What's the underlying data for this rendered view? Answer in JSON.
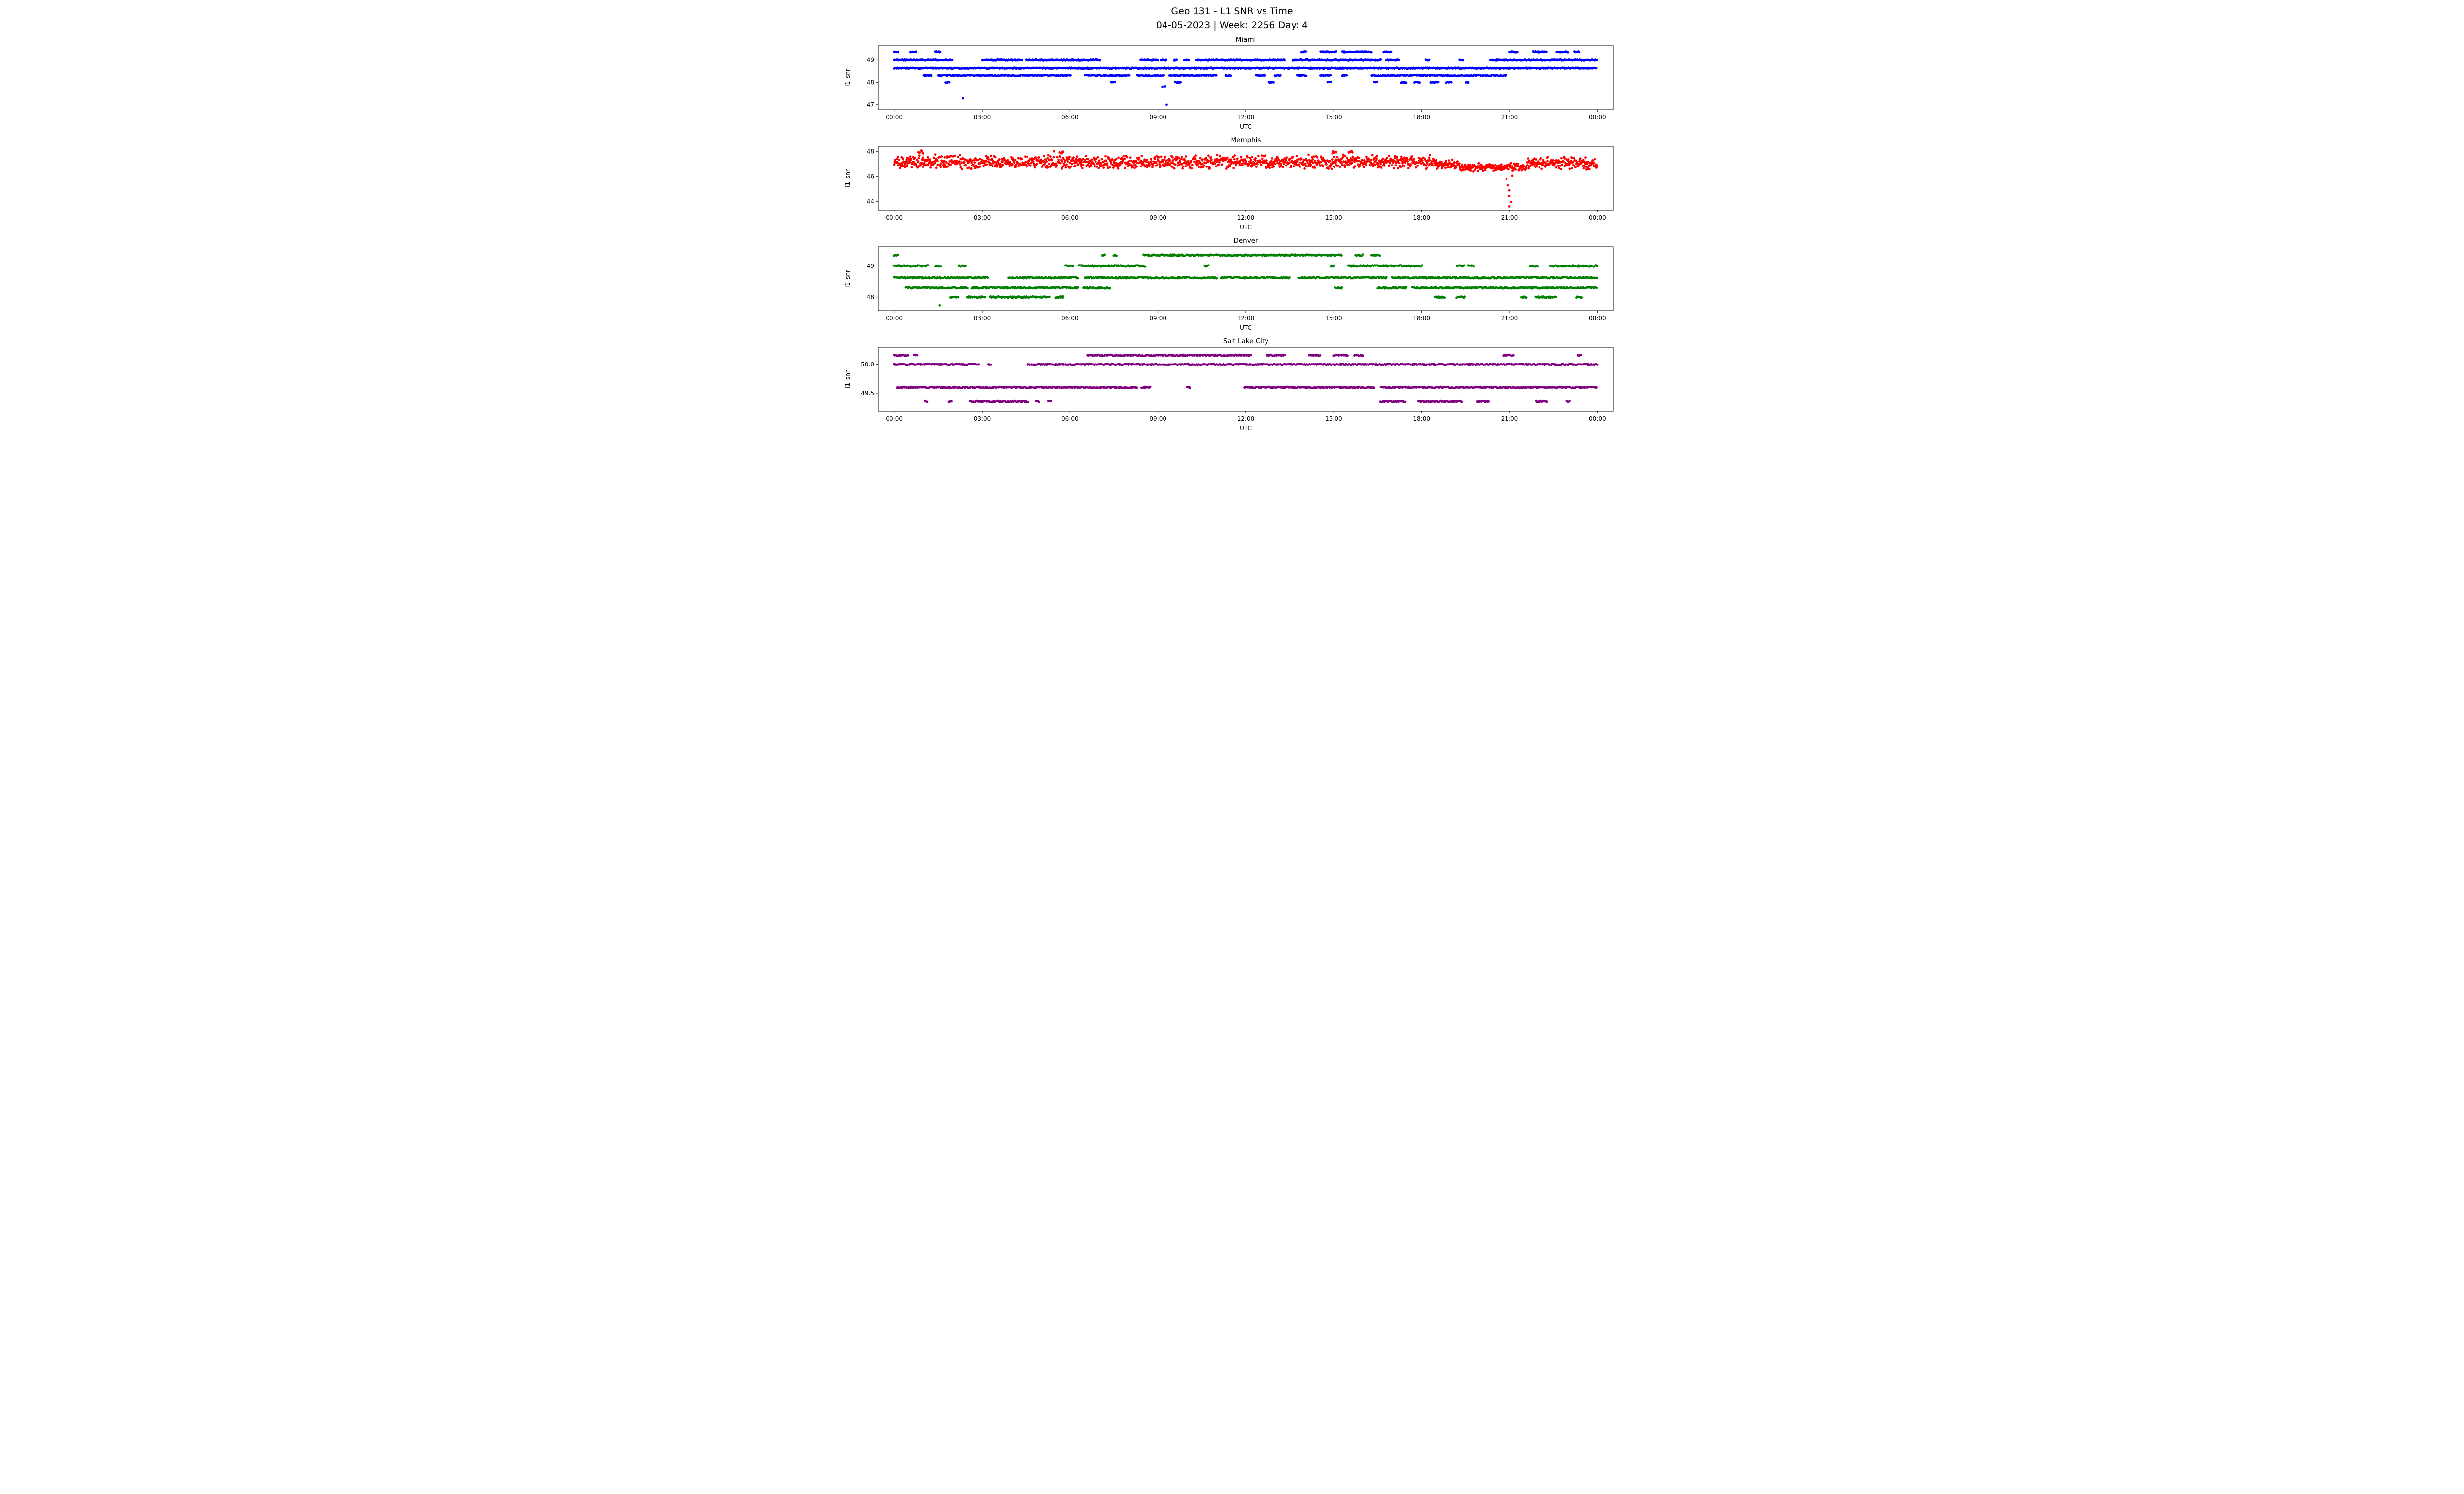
{
  "chart_data": {
    "type": "scatter",
    "suptitle": [
      "Geo 131 - L1 SNR vs Time",
      "04-05-2023 | Week: 2256 Day: 4"
    ],
    "xlabel": "UTC",
    "ylabel": "l1_snr",
    "xlim": [
      -0.55,
      24.55
    ],
    "x_ticks": [
      0,
      3,
      6,
      9,
      12,
      15,
      18,
      21,
      24
    ],
    "x_tick_labels": [
      "00:00",
      "03:00",
      "06:00",
      "09:00",
      "12:00",
      "15:00",
      "18:00",
      "21:00",
      "00:00"
    ],
    "grid": false,
    "legend": "none",
    "subplots": [
      {
        "title": "Miami",
        "color": "#0000ff",
        "ylim": [
          46.78,
          49.62
        ],
        "yticks": [
          47,
          48,
          49
        ],
        "ytick_labels": [
          "47",
          "48",
          "49"
        ],
        "bands": [
          {
            "y": 49.35,
            "segments": [
              [
                0.0,
                0.15
              ],
              [
                0.55,
                0.75
              ],
              [
                1.4,
                1.6
              ],
              [
                13.9,
                14.05
              ],
              [
                14.55,
                15.1
              ],
              [
                15.3,
                16.3
              ],
              [
                16.7,
                17.0
              ],
              [
                21.0,
                21.3
              ],
              [
                21.8,
                22.3
              ],
              [
                22.6,
                23.0
              ],
              [
                23.2,
                23.4
              ]
            ]
          },
          {
            "y": 49.0,
            "segments": [
              [
                0.0,
                2.0
              ],
              [
                3.0,
                4.35
              ],
              [
                4.5,
                7.05
              ],
              [
                8.4,
                9.0
              ],
              [
                9.1,
                9.3
              ],
              [
                9.55,
                9.65
              ],
              [
                9.9,
                10.05
              ],
              [
                10.3,
                13.35
              ],
              [
                13.6,
                16.6
              ],
              [
                16.8,
                17.25
              ],
              [
                18.15,
                18.3
              ],
              [
                19.3,
                19.45
              ],
              [
                20.35,
                24.0
              ]
            ]
          },
          {
            "y": 48.62,
            "segments": [
              [
                0.0,
                24.0
              ]
            ]
          },
          {
            "y": 48.3,
            "segments": [
              [
                1.0,
                1.3
              ],
              [
                1.5,
                6.05
              ],
              [
                6.5,
                8.05
              ],
              [
                8.3,
                9.2
              ],
              [
                9.4,
                11.0
              ],
              [
                11.3,
                11.5
              ],
              [
                12.35,
                12.65
              ],
              [
                13.0,
                13.2
              ],
              [
                13.75,
                14.1
              ],
              [
                14.55,
                14.9
              ],
              [
                15.3,
                15.45
              ],
              [
                16.3,
                20.9
              ]
            ]
          },
          {
            "y": 48.0,
            "segments": [
              [
                1.75,
                1.9
              ],
              [
                7.4,
                7.55
              ],
              [
                9.6,
                9.8
              ],
              [
                12.8,
                12.95
              ],
              [
                14.8,
                14.9
              ],
              [
                16.4,
                16.5
              ],
              [
                17.3,
                17.5
              ],
              [
                17.75,
                17.95
              ],
              [
                18.3,
                18.6
              ],
              [
                18.85,
                19.05
              ],
              [
                19.5,
                19.6
              ]
            ]
          }
        ],
        "points": [
          [
            2.35,
            47.3
          ],
          [
            9.15,
            47.8
          ],
          [
            9.25,
            47.82
          ],
          [
            9.3,
            47.0
          ]
        ]
      },
      {
        "title": "Memphis",
        "color": "#ff0000",
        "ylim": [
          43.3,
          48.4
        ],
        "yticks": [
          44,
          46,
          48
        ],
        "ytick_labels": [
          "44",
          "46",
          "48"
        ],
        "noise_bands": [
          {
            "y_min": 46.55,
            "y_max": 47.75,
            "segments": [
              [
                0.0,
                18.5
              ]
            ]
          },
          {
            "y_min": 46.5,
            "y_max": 47.4,
            "segments": [
              [
                18.5,
                19.3
              ]
            ]
          },
          {
            "y_min": 46.35,
            "y_max": 47.15,
            "segments": [
              [
                19.3,
                21.6
              ]
            ]
          },
          {
            "y_min": 46.5,
            "y_max": 47.6,
            "segments": [
              [
                21.6,
                24.0
              ]
            ]
          },
          {
            "y_min": 47.8,
            "y_max": 48.1,
            "step": 0.03,
            "segments": [
              [
                0.82,
                1.0
              ],
              [
                5.65,
                5.8
              ],
              [
                14.95,
                15.1
              ],
              [
                15.5,
                15.65
              ]
            ]
          }
        ],
        "points": [
          [
            20.9,
            45.8
          ],
          [
            20.95,
            45.3
          ],
          [
            21.0,
            44.9
          ],
          [
            21.0,
            44.45
          ],
          [
            21.05,
            43.95
          ],
          [
            21.0,
            43.6
          ],
          [
            21.1,
            46.05
          ],
          [
            5.45,
            48.0
          ]
        ]
      },
      {
        "title": "Denver",
        "color": "#008000",
        "ylim": [
          47.55,
          49.62
        ],
        "yticks": [
          48,
          49
        ],
        "ytick_labels": [
          "48",
          "49"
        ],
        "bands": [
          {
            "y": 49.35,
            "segments": [
              [
                0.0,
                0.12
              ],
              [
                7.1,
                7.2
              ],
              [
                7.5,
                7.62
              ],
              [
                8.5,
                15.3
              ],
              [
                15.75,
                16.0
              ],
              [
                16.3,
                16.6
              ]
            ]
          },
          {
            "y": 49.0,
            "segments": [
              [
                0.0,
                1.2
              ],
              [
                1.4,
                1.6
              ],
              [
                2.2,
                2.45
              ],
              [
                5.85,
                6.15
              ],
              [
                6.3,
                8.6
              ],
              [
                10.6,
                10.72
              ],
              [
                14.9,
                15.02
              ],
              [
                15.5,
                18.05
              ],
              [
                19.2,
                19.45
              ],
              [
                19.6,
                19.8
              ],
              [
                21.7,
                22.0
              ],
              [
                22.4,
                24.0
              ]
            ]
          },
          {
            "y": 48.62,
            "segments": [
              [
                0.0,
                3.2
              ],
              [
                3.9,
                6.3
              ],
              [
                6.5,
                11.0
              ],
              [
                11.15,
                13.5
              ],
              [
                13.8,
                16.8
              ],
              [
                17.0,
                24.0
              ]
            ]
          },
          {
            "y": 48.3,
            "segments": [
              [
                0.4,
                2.5
              ],
              [
                2.65,
                6.3
              ],
              [
                6.45,
                7.4
              ],
              [
                15.05,
                15.3
              ],
              [
                16.5,
                17.5
              ],
              [
                17.7,
                24.0
              ]
            ]
          },
          {
            "y": 48.0,
            "segments": [
              [
                1.9,
                2.2
              ],
              [
                2.5,
                3.1
              ],
              [
                3.25,
                5.3
              ],
              [
                5.5,
                5.8
              ],
              [
                18.45,
                18.8
              ],
              [
                19.2,
                19.5
              ],
              [
                21.4,
                21.6
              ],
              [
                21.9,
                22.6
              ],
              [
                23.3,
                23.5
              ]
            ]
          }
        ],
        "points": [
          [
            1.55,
            47.72
          ]
        ]
      },
      {
        "title": "Salt Lake City",
        "color": "#800080",
        "ylim": [
          49.18,
          50.3
        ],
        "yticks": [
          49.5,
          50.0
        ],
        "ytick_labels": [
          "49.5",
          "50.0"
        ],
        "bands": [
          {
            "y": 50.16,
            "jitter": 0.01,
            "segments": [
              [
                0.0,
                0.5
              ],
              [
                0.68,
                0.78
              ],
              [
                6.6,
                12.2
              ],
              [
                12.7,
                13.35
              ],
              [
                14.15,
                14.55
              ],
              [
                15.0,
                15.5
              ],
              [
                15.7,
                16.0
              ],
              [
                20.8,
                21.15
              ],
              [
                23.35,
                23.45
              ]
            ]
          },
          {
            "y": 50.0,
            "jitter": 0.01,
            "segments": [
              [
                0.0,
                2.9
              ],
              [
                3.2,
                3.3
              ],
              [
                4.55,
                24.0
              ]
            ]
          },
          {
            "y": 49.6,
            "jitter": 0.01,
            "segments": [
              [
                0.1,
                8.3
              ],
              [
                8.45,
                8.75
              ],
              [
                10.0,
                10.1
              ],
              [
                11.95,
                16.4
              ],
              [
                16.6,
                24.0
              ]
            ]
          },
          {
            "y": 49.35,
            "jitter": 0.01,
            "segments": [
              [
                1.05,
                1.15
              ],
              [
                1.85,
                1.95
              ],
              [
                2.6,
                4.6
              ],
              [
                4.85,
                4.95
              ],
              [
                5.25,
                5.35
              ],
              [
                16.6,
                17.45
              ],
              [
                17.9,
                19.4
              ],
              [
                19.9,
                20.3
              ],
              [
                21.9,
                22.3
              ],
              [
                22.95,
                23.05
              ]
            ]
          }
        ],
        "points": []
      }
    ]
  }
}
